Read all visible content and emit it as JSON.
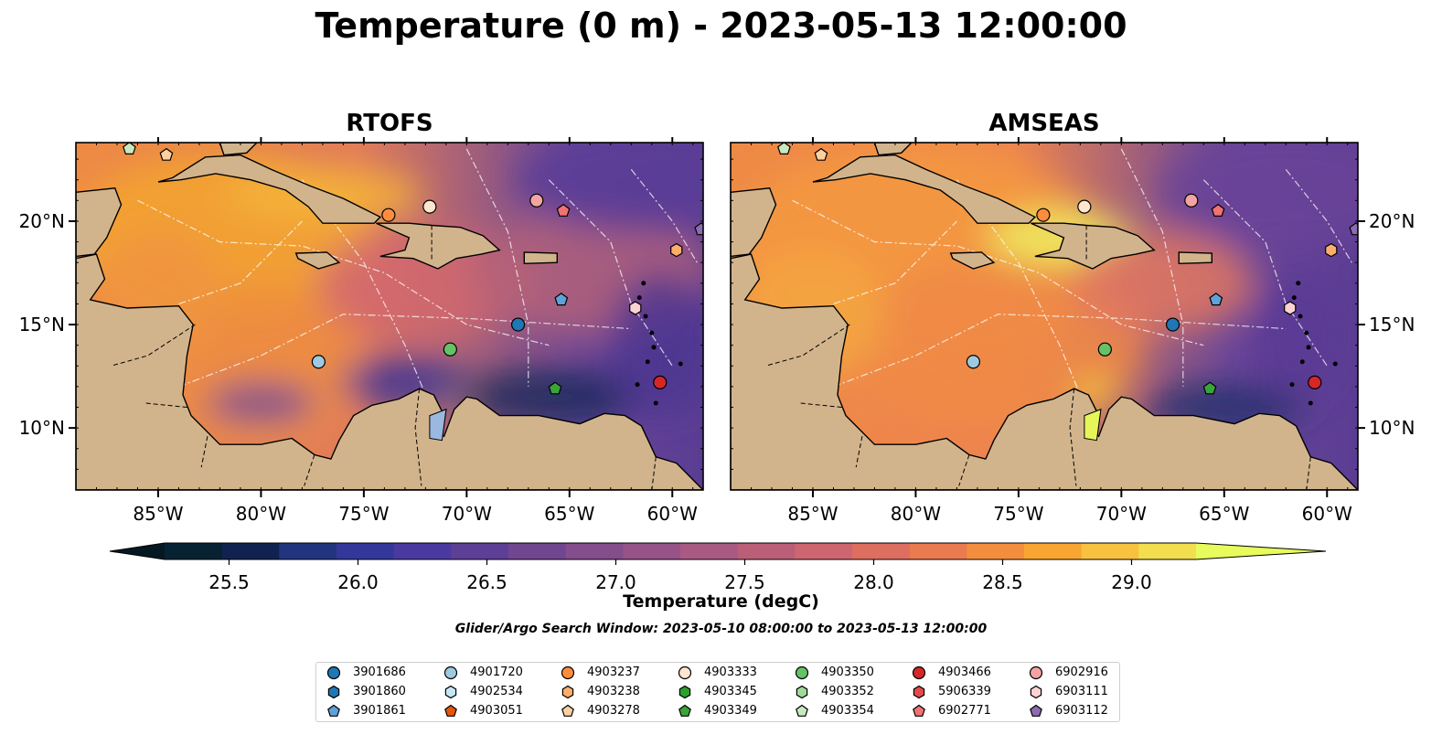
{
  "title": "Temperature (0 m) - 2023-05-13 12:00:00",
  "panels": [
    {
      "title": "RTOFS"
    },
    {
      "title": "AMSEAS"
    }
  ],
  "axes": {
    "x_ticks": [
      "85°W",
      "80°W",
      "75°W",
      "70°W",
      "65°W",
      "60°W"
    ],
    "x_tick_values": [
      -85,
      -80,
      -75,
      -70,
      -65,
      -60
    ],
    "y_ticks": [
      "20°N",
      "15°N",
      "10°N"
    ],
    "y_tick_values": [
      20,
      15,
      10
    ],
    "xlim": [
      -89,
      -58.5
    ],
    "ylim": [
      7,
      23.8
    ]
  },
  "colorbar": {
    "label": "Temperature (degC)",
    "tick_labels": [
      "25.5",
      "26.0",
      "26.5",
      "27.0",
      "27.5",
      "28.0",
      "28.5",
      "29.0"
    ],
    "tick_values": [
      25.5,
      26.0,
      26.5,
      27.0,
      27.5,
      28.0,
      28.5,
      29.0
    ],
    "range": [
      25.25,
      29.25
    ],
    "extend": "both",
    "colors": [
      "#062233",
      "#10224f",
      "#23347e",
      "#34379a",
      "#4a3a9f",
      "#5d3f96",
      "#714690",
      "#844d8c",
      "#975388",
      "#a95a82",
      "#bb5f79",
      "#cd6670",
      "#dd6e60",
      "#ea7a4f",
      "#f48e3f",
      "#f8a631",
      "#f8c140",
      "#f2de4e"
    ],
    "under_color": "#041824",
    "over_color": "#e8fb5c"
  },
  "search_window_text": "Glider/Argo Search Window: 2023-05-10 08:00:00 to 2023-05-13 12:00:00",
  "colors": {
    "land": "#d2b48c",
    "pacific_rtofs": "#e6f557",
    "pacific_amseas": "#9ab8e0",
    "ocean_warm": "#ee8a45",
    "ocean_cool": "#6a4698"
  },
  "legend": [
    {
      "label": "3901686",
      "marker": "circle",
      "color": "#1f77b4"
    },
    {
      "label": "3901860",
      "marker": "hexagon",
      "color": "#1f77b4"
    },
    {
      "label": "3901861",
      "marker": "pentagon",
      "color": "#5fa2d9"
    },
    {
      "label": "4901720",
      "marker": "circle",
      "color": "#9ecae1"
    },
    {
      "label": "4902534",
      "marker": "hexagon",
      "color": "#c6e6f7"
    },
    {
      "label": "4903051",
      "marker": "pentagon",
      "color": "#e6550d"
    },
    {
      "label": "4903237",
      "marker": "circle",
      "color": "#fd8d3c"
    },
    {
      "label": "4903238",
      "marker": "hexagon",
      "color": "#fdae6b"
    },
    {
      "label": "4903278",
      "marker": "pentagon",
      "color": "#fdd0a2"
    },
    {
      "label": "4903333",
      "marker": "circle",
      "color": "#fde5cf"
    },
    {
      "label": "4903345",
      "marker": "hexagon",
      "color": "#2ca02c"
    },
    {
      "label": "4903349",
      "marker": "pentagon",
      "color": "#3aa33a"
    },
    {
      "label": "4903350",
      "marker": "circle",
      "color": "#66c266"
    },
    {
      "label": "4903352",
      "marker": "hexagon",
      "color": "#a1d99b"
    },
    {
      "label": "4903354",
      "marker": "pentagon",
      "color": "#c7e9c0"
    },
    {
      "label": "4903466",
      "marker": "circle",
      "color": "#d62728"
    },
    {
      "label": "5906339",
      "marker": "hexagon",
      "color": "#e34a4a"
    },
    {
      "label": "6902771",
      "marker": "pentagon",
      "color": "#f07272"
    },
    {
      "label": "6902916",
      "marker": "circle",
      "color": "#f4a3a3"
    },
    {
      "label": "6903111",
      "marker": "hexagon",
      "color": "#fcd3d3"
    },
    {
      "label": "6903112",
      "marker": "pentagon",
      "color": "#8c6bb1"
    }
  ],
  "chart_data": {
    "type": "scatter",
    "description_series": "float positions plotted on both panels",
    "points": [
      {
        "id": "4903354",
        "lon": -86.4,
        "lat": 23.5
      },
      {
        "id": "4903278",
        "lon": -84.6,
        "lat": 23.2
      },
      {
        "id": "4903237",
        "lon": -73.8,
        "lat": 20.3
      },
      {
        "id": "4903333",
        "lon": -71.8,
        "lat": 20.7
      },
      {
        "id": "6902916",
        "lon": -66.6,
        "lat": 21.0
      },
      {
        "id": "6902771",
        "lon": -65.3,
        "lat": 20.5
      },
      {
        "id": "4903238",
        "lon": -59.8,
        "lat": 18.6
      },
      {
        "id": "6903112",
        "lon": -58.6,
        "lat": 19.6
      },
      {
        "id": "3901861",
        "lon": -65.4,
        "lat": 16.2
      },
      {
        "id": "6903111",
        "lon": -61.8,
        "lat": 15.8
      },
      {
        "id": "3901686",
        "lon": -67.5,
        "lat": 15.0
      },
      {
        "id": "4903350",
        "lon": -70.8,
        "lat": 13.8
      },
      {
        "id": "4901720",
        "lon": -77.2,
        "lat": 13.2
      },
      {
        "id": "4903349",
        "lon": -65.7,
        "lat": 11.9
      },
      {
        "id": "4903466",
        "lon": -60.6,
        "lat": 12.2
      }
    ]
  }
}
